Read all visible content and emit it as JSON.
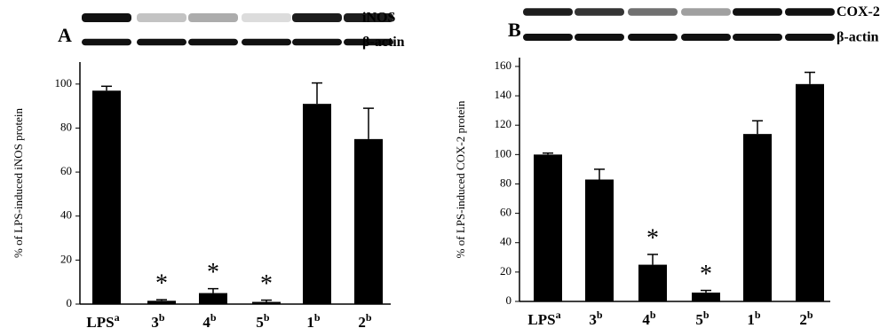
{
  "chart_data": [
    {
      "type": "bar",
      "panel": "A",
      "blot_labels": [
        "iNOS",
        "β-actin"
      ],
      "ylabel": "% of LPS-induced iNOS protein",
      "categories": [
        "LPS",
        "3",
        "4",
        "5",
        "1",
        "2"
      ],
      "category_superscripts": [
        "a",
        "b",
        "b",
        "b",
        "b",
        "b"
      ],
      "values": [
        97,
        1.5,
        5,
        1,
        91,
        75
      ],
      "errors": [
        2,
        0.5,
        2,
        0.8,
        9.5,
        14
      ],
      "markers": [
        null,
        "*",
        "*",
        "*",
        null,
        null
      ],
      "color": "#000000",
      "ylim": [
        0,
        110
      ],
      "yticks": [
        0,
        20,
        40,
        60,
        80,
        100
      ]
    },
    {
      "type": "bar",
      "panel": "B",
      "blot_labels": [
        "COX-2",
        "β-actin"
      ],
      "ylabel": "% of LPS-induced COX-2 protein",
      "categories": [
        "LPS",
        "3",
        "4",
        "5",
        "1",
        "2"
      ],
      "category_superscripts": [
        "a",
        "b",
        "b",
        "b",
        "b",
        "b"
      ],
      "values": [
        100,
        83,
        25,
        6,
        114,
        148
      ],
      "errors": [
        1,
        7,
        7,
        1.5,
        9,
        8
      ],
      "markers": [
        null,
        null,
        "*",
        "*",
        null,
        null
      ],
      "color": "#000000",
      "ylim": [
        0,
        166
      ],
      "yticks": [
        0,
        20,
        40,
        60,
        80,
        100,
        120,
        140,
        160
      ]
    }
  ]
}
